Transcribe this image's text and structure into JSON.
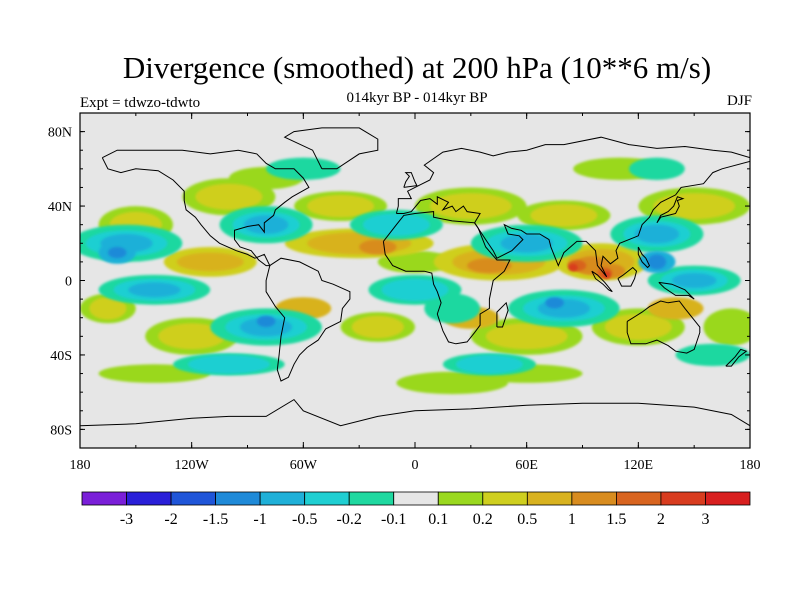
{
  "title": "Divergence (smoothed) at 200 hPa (10**6 m/s)",
  "subtitle": "014kyr BP - 014kyr BP",
  "experiment": "Expt = tdwzo-tdwto",
  "season": "DJF",
  "map": {
    "land_fill": "#e6e6e6",
    "lat_ticks": [
      "80N",
      "40N",
      "0",
      "40S",
      "80S"
    ],
    "lon_ticks": [
      "180",
      "120W",
      "60W",
      "0",
      "60E",
      "120E",
      "180"
    ],
    "lat_values": [
      80,
      40,
      0,
      -40,
      -80
    ],
    "lon_values": [
      -180,
      -120,
      -60,
      0,
      60,
      120,
      180
    ],
    "lat_range": [
      -90,
      90
    ],
    "lon_range": [
      -180,
      180
    ]
  },
  "colorbar": {
    "colors": [
      "#7a1fd8",
      "#2a1fd8",
      "#1f55d8",
      "#1f8ad8",
      "#1fb0d8",
      "#1fcfd2",
      "#1fd8a0",
      "#e6e6e6",
      "#9ad81f",
      "#cfcf1f",
      "#d8b21f",
      "#d88c1f",
      "#d8641f",
      "#d83c1f",
      "#d81f1f"
    ],
    "labels": [
      "-3",
      "-2",
      "-1.5",
      "-1",
      "-0.5",
      "-0.2",
      "-0.1",
      "0.1",
      "0.2",
      "0.5",
      "1",
      "1.5",
      "2",
      "3"
    ]
  },
  "fields": {
    "positive_levels": [
      {
        "color": "#9ad81f",
        "blobs": [
          [
            -150,
            30,
            20,
            10
          ],
          [
            -100,
            45,
            25,
            10
          ],
          [
            -40,
            40,
            25,
            8
          ],
          [
            30,
            40,
            30,
            10
          ],
          [
            80,
            35,
            25,
            8
          ],
          [
            150,
            40,
            30,
            10
          ],
          [
            -165,
            -15,
            15,
            8
          ],
          [
            -120,
            -30,
            25,
            10
          ],
          [
            -20,
            -25,
            20,
            8
          ],
          [
            60,
            -30,
            30,
            10
          ],
          [
            120,
            -25,
            25,
            10
          ],
          [
            170,
            -25,
            15,
            10
          ],
          [
            -80,
            55,
            20,
            6
          ],
          [
            20,
            -55,
            30,
            6
          ],
          [
            -140,
            -50,
            30,
            5
          ],
          [
            60,
            -50,
            30,
            5
          ],
          [
            110,
            60,
            25,
            6
          ],
          [
            0,
            10,
            20,
            6
          ]
        ]
      },
      {
        "color": "#cfcf1f",
        "blobs": [
          [
            -150,
            30,
            14,
            7
          ],
          [
            -100,
            45,
            18,
            7
          ],
          [
            -40,
            40,
            18,
            6
          ],
          [
            30,
            40,
            22,
            7
          ],
          [
            80,
            35,
            18,
            6
          ],
          [
            150,
            40,
            22,
            7
          ],
          [
            -165,
            -15,
            10,
            6
          ],
          [
            -120,
            -30,
            18,
            7
          ],
          [
            -20,
            -25,
            14,
            6
          ],
          [
            60,
            -30,
            22,
            7
          ],
          [
            120,
            -25,
            18,
            7
          ],
          [
            -30,
            20,
            40,
            8
          ],
          [
            45,
            10,
            35,
            10
          ],
          [
            100,
            10,
            25,
            10
          ],
          [
            -110,
            10,
            25,
            8
          ]
        ]
      },
      {
        "color": "#d8b21f",
        "blobs": [
          [
            -30,
            20,
            28,
            6
          ],
          [
            45,
            10,
            25,
            7
          ],
          [
            100,
            10,
            18,
            7
          ],
          [
            -110,
            10,
            18,
            5
          ],
          [
            -60,
            -15,
            15,
            6
          ],
          [
            30,
            -20,
            15,
            6
          ],
          [
            140,
            -15,
            15,
            6
          ]
        ]
      },
      {
        "color": "#d88c1f",
        "blobs": [
          [
            95,
            8,
            10,
            5
          ],
          [
            105,
            5,
            8,
            4
          ],
          [
            40,
            8,
            12,
            4
          ],
          [
            -20,
            18,
            10,
            4
          ]
        ]
      },
      {
        "color": "#d8641f",
        "blobs": [
          [
            87,
            8,
            5,
            3
          ],
          [
            102,
            4,
            4,
            3
          ]
        ]
      },
      {
        "color": "#d83c1f",
        "blobs": [
          [
            85,
            7,
            2.5,
            2
          ],
          [
            103,
            3,
            2,
            2
          ]
        ]
      }
    ],
    "negative_levels": [
      {
        "color": "#1fd8a0",
        "blobs": [
          [
            -155,
            20,
            30,
            10
          ],
          [
            -80,
            30,
            25,
            10
          ],
          [
            -10,
            30,
            25,
            8
          ],
          [
            60,
            20,
            30,
            10
          ],
          [
            130,
            25,
            25,
            10
          ],
          [
            -140,
            -5,
            30,
            8
          ],
          [
            -80,
            -25,
            30,
            10
          ],
          [
            0,
            -5,
            25,
            8
          ],
          [
            80,
            -15,
            30,
            10
          ],
          [
            150,
            0,
            25,
            8
          ],
          [
            -100,
            -45,
            30,
            6
          ],
          [
            40,
            -45,
            25,
            6
          ],
          [
            160,
            -40,
            20,
            6
          ],
          [
            -60,
            60,
            20,
            6
          ],
          [
            130,
            60,
            15,
            6
          ],
          [
            20,
            -15,
            15,
            8
          ]
        ]
      },
      {
        "color": "#1fcfd2",
        "blobs": [
          [
            -155,
            20,
            22,
            7
          ],
          [
            -80,
            30,
            18,
            7
          ],
          [
            -10,
            30,
            18,
            6
          ],
          [
            60,
            20,
            22,
            7
          ],
          [
            130,
            25,
            18,
            7
          ],
          [
            -140,
            -5,
            22,
            6
          ],
          [
            -80,
            -25,
            22,
            7
          ],
          [
            0,
            -5,
            18,
            6
          ],
          [
            80,
            -15,
            22,
            7
          ],
          [
            150,
            0,
            18,
            6
          ],
          [
            -100,
            -45,
            22,
            5
          ],
          [
            40,
            -45,
            18,
            5
          ]
        ]
      },
      {
        "color": "#1fb0d8",
        "blobs": [
          [
            -155,
            20,
            14,
            5
          ],
          [
            -80,
            30,
            12,
            5
          ],
          [
            60,
            20,
            14,
            5
          ],
          [
            130,
            25,
            12,
            5
          ],
          [
            -140,
            -5,
            14,
            4
          ],
          [
            -80,
            -25,
            14,
            5
          ],
          [
            80,
            -15,
            14,
            5
          ],
          [
            150,
            0,
            12,
            4
          ],
          [
            -160,
            15,
            10,
            6
          ],
          [
            130,
            10,
            10,
            6
          ]
        ]
      },
      {
        "color": "#1f8ad8",
        "blobs": [
          [
            -160,
            15,
            5,
            3
          ],
          [
            130,
            10,
            5,
            4
          ],
          [
            -80,
            -22,
            5,
            3
          ],
          [
            75,
            -12,
            5,
            3
          ]
        ]
      }
    ]
  }
}
